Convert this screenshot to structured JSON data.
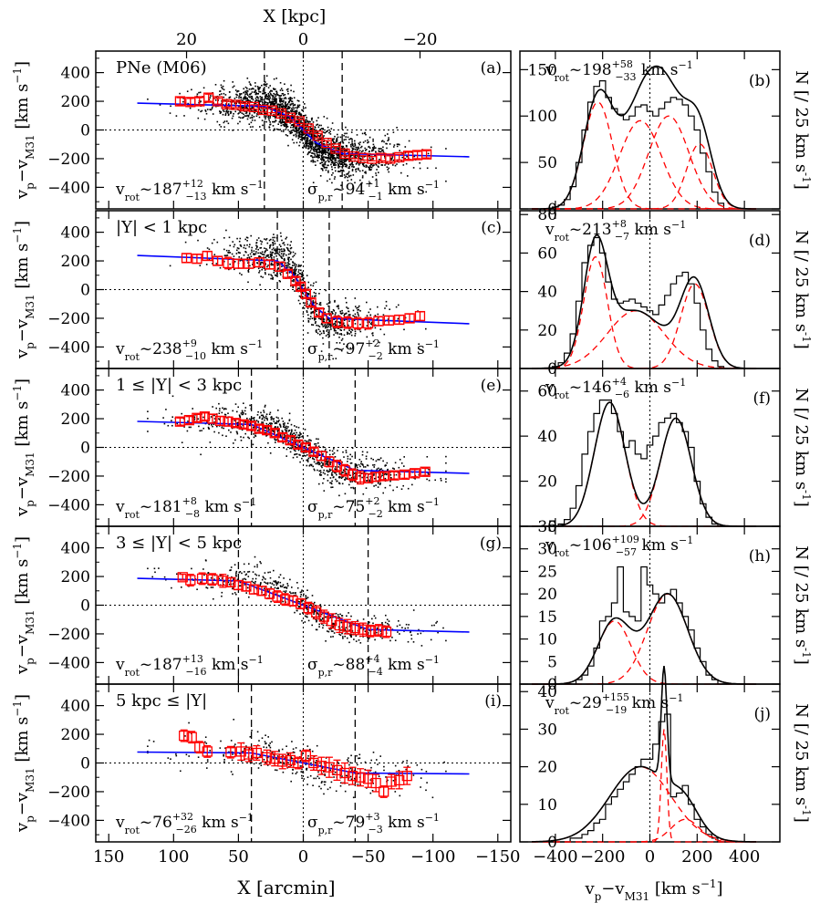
{
  "top_axis": {
    "label": "X [kpc]",
    "ticks": [
      {
        "label": "20",
        "value": 20
      },
      {
        "label": "0",
        "value": 0
      },
      {
        "label": "−20",
        "value": -20
      }
    ]
  },
  "bottom_axis_left": "X [arcmin]",
  "bottom_axis_right_label": "vp−vM31 [km s−1]",
  "left_ylabel_html": "v<tspan font-size=\"12\" baseline-shift=\"sub\">p</tspan>−v<tspan font-size=\"12\" baseline-shift=\"sub\">M31</tspan> [km s<tspan font-size=\"12\" baseline-shift=\"super\">−1</tspan>]",
  "right_ylabel": "N [/ 25 km s-1]",
  "chart_data": [
    {
      "type": "scatter",
      "panel": "(a)",
      "label": "PNe (M06)",
      "xlim": [
        160,
        -160
      ],
      "ylim": [
        -550,
        550
      ],
      "xticks": [
        150,
        100,
        50,
        0,
        -50,
        -100,
        -150
      ],
      "yticks": [
        -400,
        -200,
        0,
        200,
        400
      ],
      "vlines": [
        30,
        -30
      ],
      "vrot": "187",
      "vrot_plus": "+12",
      "vrot_minus": "−13",
      "sigma": "94",
      "sigma_plus": "+1",
      "sigma_minus": "−1",
      "model_flat": 187,
      "model_x": [
        128,
        30,
        10,
        0,
        -10,
        -30,
        -128
      ],
      "model_y": [
        187,
        165,
        90,
        0,
        -90,
        -165,
        -187
      ],
      "binned": {
        "x": [
          95,
          87,
          80,
          73,
          66,
          59,
          52,
          45,
          38,
          31,
          24,
          17,
          10,
          3,
          -4,
          -11,
          -18,
          -25,
          -32,
          -39,
          -46,
          -53,
          -60,
          -67,
          -74,
          -81,
          -88,
          -95
        ],
        "y": [
          200,
          195,
          200,
          225,
          200,
          180,
          175,
          165,
          160,
          140,
          135,
          115,
          85,
          60,
          10,
          -40,
          -90,
          -130,
          -165,
          -185,
          -195,
          -200,
          -195,
          -200,
          -190,
          -180,
          -175,
          -170
        ],
        "err": [
          25,
          25,
          25,
          25,
          20,
          20,
          20,
          20,
          15,
          15,
          15,
          15,
          15,
          15,
          15,
          15,
          15,
          15,
          15,
          15,
          15,
          15,
          20,
          20,
          20,
          25,
          25,
          25
        ]
      },
      "hist": {
        "vrot": "198",
        "vrot_plus": "+58",
        "vrot_minus": "−33",
        "ylim": [
          0,
          170
        ],
        "yticks": [
          0,
          50,
          100,
          150
        ],
        "bins_x": [
          -425,
          -400,
          -375,
          -350,
          -325,
          -300,
          -275,
          -250,
          -225,
          -200,
          -175,
          -150,
          -125,
          -100,
          -75,
          -50,
          -25,
          0,
          25,
          50,
          75,
          100,
          125,
          150,
          175,
          200,
          225,
          250,
          275,
          300,
          325
        ],
        "counts": [
          0,
          2,
          4,
          10,
          24,
          50,
          85,
          115,
          132,
          138,
          120,
          108,
          102,
          96,
          100,
          110,
          112,
          105,
          100,
          108,
          115,
          120,
          118,
          112,
          100,
          85,
          60,
          40,
          18,
          6,
          0
        ],
        "components": [
          {
            "mu": -220,
            "sig": 62,
            "amp": 115
          },
          {
            "mu": -40,
            "sig": 88,
            "amp": 95
          },
          {
            "mu": 80,
            "sig": 85,
            "amp": 100
          },
          {
            "mu": 210,
            "sig": 55,
            "amp": 70
          }
        ]
      }
    },
    {
      "type": "scatter",
      "panel": "(c)",
      "label": "|Y| < 1 kpc",
      "xlim": [
        160,
        -160
      ],
      "ylim": [
        -550,
        550
      ],
      "xticks": [
        150,
        100,
        50,
        0,
        -50,
        -100,
        -150
      ],
      "yticks": [
        -400,
        -200,
        0,
        200,
        400
      ],
      "vlines": [
        20,
        -20
      ],
      "vrot": "238",
      "vrot_plus": "+9",
      "vrot_minus": "−10",
      "sigma": "97",
      "sigma_plus": "+2",
      "sigma_minus": "−2",
      "model_flat": 238,
      "model_x": [
        128,
        20,
        8,
        0,
        -8,
        -20,
        -128
      ],
      "model_y": [
        238,
        200,
        110,
        0,
        -110,
        -200,
        -238
      ],
      "binned": {
        "x": [
          90,
          82,
          74,
          66,
          58,
          50,
          42,
          34,
          26,
          18,
          12,
          6,
          2,
          -2,
          -6,
          -12,
          -18,
          -26,
          -34,
          -42,
          -50,
          -58,
          -66,
          -74,
          -82,
          -90
        ],
        "y": [
          220,
          215,
          235,
          200,
          185,
          180,
          180,
          190,
          175,
          160,
          110,
          60,
          20,
          -30,
          -90,
          -160,
          -200,
          -225,
          -230,
          -235,
          -235,
          -220,
          -215,
          -210,
          -200,
          -185
        ],
        "err": [
          30,
          30,
          30,
          30,
          40,
          30,
          30,
          30,
          30,
          30,
          25,
          25,
          25,
          25,
          25,
          25,
          30,
          40,
          40,
          40,
          40,
          30,
          30,
          30,
          30,
          30
        ]
      },
      "hist": {
        "vrot": "213",
        "vrot_plus": "+8",
        "vrot_minus": "−7",
        "ylim": [
          0,
          82
        ],
        "yticks": [
          0,
          20,
          40,
          60,
          80
        ],
        "bins_x": [
          -425,
          -400,
          -375,
          -350,
          -325,
          -300,
          -275,
          -250,
          -225,
          -200,
          -175,
          -150,
          -125,
          -100,
          -75,
          -50,
          -25,
          0,
          25,
          50,
          75,
          100,
          125,
          150,
          175,
          200,
          225,
          250,
          275,
          300,
          325
        ],
        "counts": [
          0,
          1,
          3,
          8,
          18,
          35,
          55,
          64,
          68,
          60,
          45,
          36,
          34,
          35,
          36,
          34,
          32,
          30,
          28,
          33,
          38,
          44,
          48,
          50,
          44,
          34,
          20,
          10,
          4,
          1,
          0
        ],
        "components": [
          {
            "mu": -230,
            "sig": 50,
            "amp": 58
          },
          {
            "mu": -60,
            "sig": 120,
            "amp": 30
          },
          {
            "mu": 190,
            "sig": 60,
            "amp": 44
          }
        ]
      }
    },
    {
      "type": "scatter",
      "panel": "(e)",
      "label": "1 ≤ |Y| < 3 kpc",
      "xlim": [
        160,
        -160
      ],
      "ylim": [
        -550,
        550
      ],
      "xticks": [
        150,
        100,
        50,
        0,
        -50,
        -100,
        -150
      ],
      "yticks": [
        -400,
        -200,
        0,
        200,
        400
      ],
      "vlines": [
        40,
        -40
      ],
      "vrot": "181",
      "vrot_plus": "+8",
      "vrot_minus": "−8",
      "sigma": "75",
      "sigma_plus": "+2",
      "sigma_minus": "−2",
      "model_flat": 181,
      "model_x": [
        128,
        40,
        0,
        -40,
        -128
      ],
      "model_y": [
        181,
        160,
        0,
        -160,
        -181
      ],
      "binned": {
        "x": [
          95,
          88,
          82,
          76,
          70,
          64,
          58,
          52,
          46,
          40,
          34,
          28,
          22,
          16,
          10,
          4,
          -2,
          -8,
          -14,
          -20,
          -26,
          -32,
          -38,
          -44,
          -50,
          -56,
          -62,
          -70,
          -78,
          -86,
          -94
        ],
        "y": [
          180,
          190,
          205,
          215,
          200,
          185,
          180,
          170,
          160,
          150,
          130,
          120,
          100,
          70,
          50,
          20,
          0,
          -30,
          -60,
          -100,
          -130,
          -160,
          -190,
          -210,
          -215,
          -205,
          -200,
          -195,
          -190,
          -180,
          -170
        ],
        "err": [
          25,
          25,
          25,
          25,
          30,
          30,
          30,
          25,
          25,
          25,
          25,
          25,
          25,
          25,
          25,
          25,
          25,
          25,
          30,
          35,
          40,
          40,
          40,
          45,
          30,
          30,
          25,
          25,
          25,
          25,
          25
        ]
      },
      "hist": {
        "vrot": "146",
        "vrot_plus": "+4",
        "vrot_minus": "−6",
        "ylim": [
          0,
          70
        ],
        "yticks": [
          0,
          20,
          40,
          60
        ],
        "bins_x": [
          -425,
          -400,
          -375,
          -350,
          -325,
          -300,
          -275,
          -250,
          -225,
          -200,
          -175,
          -150,
          -125,
          -100,
          -75,
          -50,
          -25,
          0,
          25,
          50,
          75,
          100,
          125,
          150,
          175,
          200,
          225,
          250,
          275,
          300,
          325
        ],
        "counts": [
          0,
          0,
          1,
          3,
          8,
          18,
          32,
          42,
          50,
          56,
          56,
          50,
          42,
          35,
          38,
          32,
          30,
          36,
          40,
          46,
          48,
          50,
          46,
          42,
          35,
          20,
          10,
          4,
          1,
          0,
          0
        ],
        "components": [
          {
            "mu": -170,
            "sig": 65,
            "amp": 55
          },
          {
            "mu": 110,
            "sig": 65,
            "amp": 48
          }
        ]
      }
    },
    {
      "type": "scatter",
      "panel": "(g)",
      "label": "3 ≤ |Y| < 5 kpc",
      "xlim": [
        160,
        -160
      ],
      "ylim": [
        -550,
        550
      ],
      "xticks": [
        150,
        100,
        50,
        0,
        -50,
        -100,
        -150
      ],
      "yticks": [
        -400,
        -200,
        0,
        200,
        400
      ],
      "vlines": [
        50,
        -50
      ],
      "vrot": "187",
      "vrot_plus": "+13",
      "vrot_minus": "−16",
      "sigma": "88",
      "sigma_plus": "+4",
      "sigma_minus": "−4",
      "model_flat": 187,
      "model_x": [
        128,
        50,
        0,
        -50,
        -128
      ],
      "model_y": [
        187,
        170,
        0,
        -170,
        -187
      ],
      "binned": {
        "x": [
          93,
          87,
          78,
          70,
          62,
          56,
          50,
          44,
          38,
          32,
          26,
          20,
          14,
          8,
          2,
          -4,
          -10,
          -16,
          -22,
          -28,
          -34,
          -40,
          -46,
          -52,
          -58,
          -64
        ],
        "y": [
          195,
          175,
          185,
          180,
          170,
          160,
          140,
          130,
          110,
          100,
          80,
          60,
          40,
          30,
          10,
          -20,
          -50,
          -80,
          -110,
          -140,
          -150,
          -160,
          -170,
          -180,
          -175,
          -185
        ],
        "err": [
          20,
          40,
          40,
          40,
          45,
          30,
          30,
          30,
          30,
          30,
          35,
          40,
          40,
          35,
          35,
          40,
          45,
          45,
          50,
          50,
          50,
          45,
          45,
          40,
          40,
          40
        ]
      },
      "hist": {
        "vrot": "106",
        "vrot_plus": "+109",
        "vrot_minus": "−57",
        "ylim": [
          0,
          35
        ],
        "yticks": [
          0,
          5,
          10,
          15,
          20,
          25,
          30,
          35
        ],
        "bins_x": [
          -425,
          -400,
          -375,
          -350,
          -325,
          -300,
          -275,
          -250,
          -225,
          -200,
          -175,
          -150,
          -125,
          -100,
          -75,
          -50,
          -25,
          0,
          25,
          50,
          75,
          100,
          125,
          150,
          175,
          200,
          225,
          250,
          275,
          300,
          325
        ],
        "counts": [
          0,
          0,
          0,
          0,
          0,
          1,
          2,
          4,
          8,
          14,
          15,
          18,
          26,
          16,
          15,
          14,
          26,
          22,
          20,
          18,
          20,
          21,
          18,
          15,
          12,
          8,
          5,
          2,
          1,
          0,
          0
        ],
        "components": [
          {
            "mu": -150,
            "sig": 70,
            "amp": 14
          },
          {
            "mu": 75,
            "sig": 85,
            "amp": 20
          }
        ]
      }
    },
    {
      "type": "scatter",
      "panel": "(i)",
      "label": "5 kpc ≤ |Y|",
      "xlim": [
        160,
        -160
      ],
      "ylim": [
        -550,
        550
      ],
      "xticks": [
        150,
        100,
        50,
        0,
        -50,
        -100,
        -150
      ],
      "yticks": [
        -400,
        -200,
        0,
        200,
        400
      ],
      "vlines": [
        40,
        -40
      ],
      "vrot": "76",
      "vrot_plus": "+32",
      "vrot_minus": "−26",
      "sigma": "79",
      "sigma_plus": "+3",
      "sigma_minus": "−3",
      "model_flat": 76,
      "model_x": [
        128,
        40,
        0,
        -40,
        -128
      ],
      "model_y": [
        76,
        70,
        0,
        -70,
        -76
      ],
      "binned": {
        "x": [
          92,
          86,
          80,
          74,
          56,
          48,
          42,
          36,
          28,
          22,
          16,
          10,
          4,
          -2,
          -8,
          -14,
          -20,
          -26,
          -32,
          -38,
          -44,
          -50,
          -56,
          -62,
          -68,
          -74,
          -80
        ],
        "y": [
          190,
          180,
          110,
          80,
          75,
          80,
          60,
          70,
          40,
          30,
          10,
          20,
          0,
          50,
          0,
          -20,
          -30,
          -50,
          -70,
          -90,
          -100,
          -110,
          -140,
          -200,
          -130,
          -120,
          -90
        ],
        "err": [
          40,
          40,
          40,
          40,
          40,
          60,
          50,
          50,
          50,
          50,
          50,
          50,
          40,
          40,
          50,
          60,
          70,
          70,
          70,
          60,
          60,
          60,
          60,
          40,
          50,
          60,
          60
        ]
      },
      "hist": {
        "vrot": "29",
        "vrot_plus": "+155",
        "vrot_minus": "−19",
        "ylim": [
          0,
          42
        ],
        "yticks": [
          0,
          10,
          20,
          30,
          40
        ],
        "bins_x": [
          -425,
          -400,
          -375,
          -350,
          -325,
          -300,
          -275,
          -250,
          -225,
          -200,
          -175,
          -150,
          -125,
          -100,
          -75,
          -50,
          -25,
          0,
          25,
          50,
          75,
          100,
          125,
          150,
          175,
          200,
          225,
          250,
          275,
          300,
          325
        ],
        "counts": [
          0,
          0,
          0,
          0,
          1,
          1,
          2,
          3,
          5,
          6,
          10,
          12,
          14,
          16,
          18,
          20,
          22,
          22,
          26,
          32,
          34,
          12,
          13,
          15,
          10,
          6,
          4,
          2,
          1,
          0,
          0
        ],
        "components": [
          {
            "mu": -40,
            "sig": 130,
            "amp": 20
          },
          {
            "mu": 60,
            "sig": 12,
            "amp": 30
          },
          {
            "mu": 150,
            "sig": 60,
            "amp": 6
          }
        ]
      }
    }
  ],
  "hist_panel_labels": [
    "(b)",
    "(d)",
    "(f)",
    "(h)",
    "(j)"
  ],
  "hist_xticks": [
    {
      "v": -400,
      "label": "−400"
    },
    {
      "v": -200,
      "label": "−200"
    },
    {
      "v": 0,
      "label": "0"
    },
    {
      "v": 200,
      "label": "200"
    },
    {
      "v": 400,
      "label": "400"
    }
  ],
  "hist_xlim": [
    -550,
    550
  ],
  "colors": {
    "model_line": "#0000ff",
    "binned": "#ff0000",
    "gaussian": "#ff0000",
    "fit": "#000000",
    "points": "#000000"
  }
}
